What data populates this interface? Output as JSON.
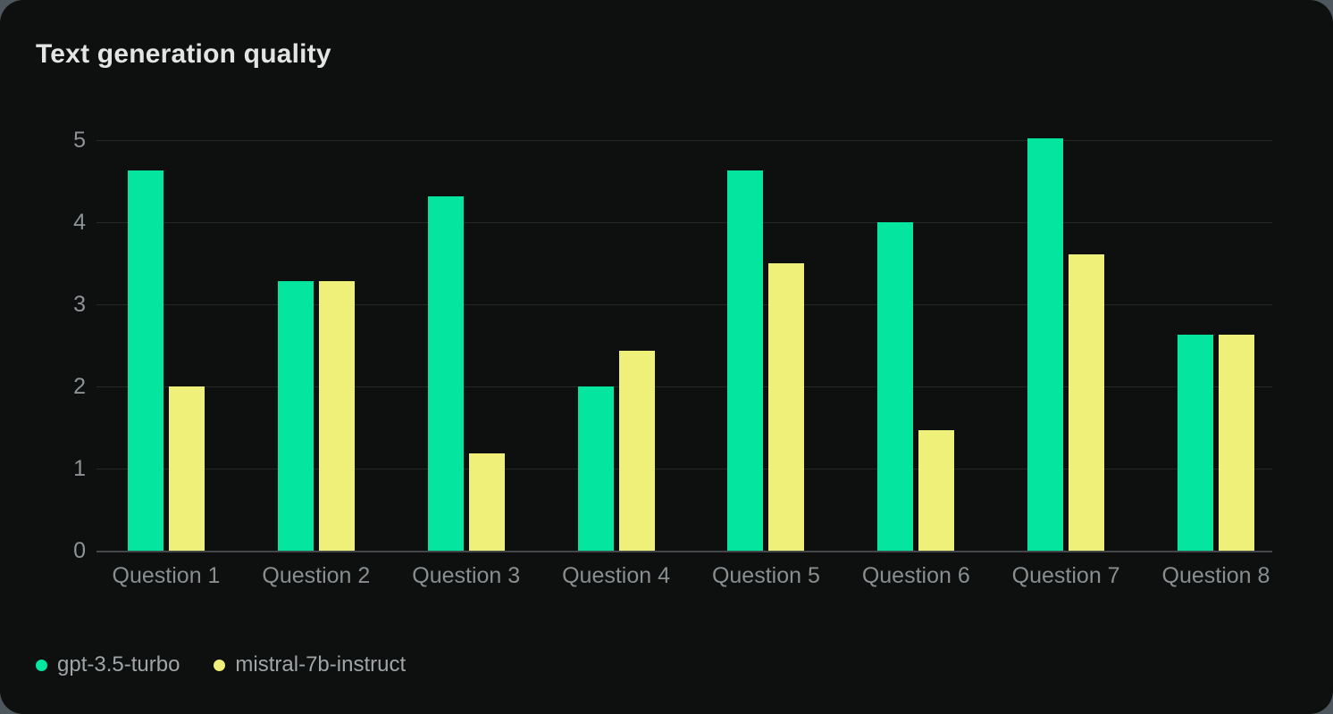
{
  "page": {
    "background_color": "#4d575d",
    "card_background_color": "#0d100f"
  },
  "header": {
    "title": "Text generation quality"
  },
  "colors": {
    "series_green": "#04e5a0",
    "series_yellow": "#eef07a",
    "gridline": "#242827",
    "axis_line": "#43474a",
    "title_text": "#e3e5e5",
    "tick_text": "#8f9396",
    "legend_text": "#a1a5a8"
  },
  "chart_data": {
    "type": "bar",
    "title": "Text generation quality",
    "categories": [
      "Question 1",
      "Question 2",
      "Question 3",
      "Question 4",
      "Question 5",
      "Question 6",
      "Question 7",
      "Question 8"
    ],
    "series": [
      {
        "name": "gpt-3.5-turbo",
        "color": "#04e5a0",
        "values": [
          4.63,
          3.28,
          4.32,
          2.0,
          4.63,
          4.0,
          5.02,
          2.63
        ]
      },
      {
        "name": "mistral-7b-instruct",
        "color": "#eef07a",
        "values": [
          2.0,
          3.28,
          1.18,
          2.43,
          3.5,
          1.47,
          3.61,
          2.63
        ]
      }
    ],
    "xlabel": "",
    "ylabel": "",
    "ylim": [
      0,
      5
    ],
    "yticks": [
      0,
      1,
      2,
      3,
      4,
      5
    ],
    "grid": true,
    "legend_position": "bottom-left"
  }
}
